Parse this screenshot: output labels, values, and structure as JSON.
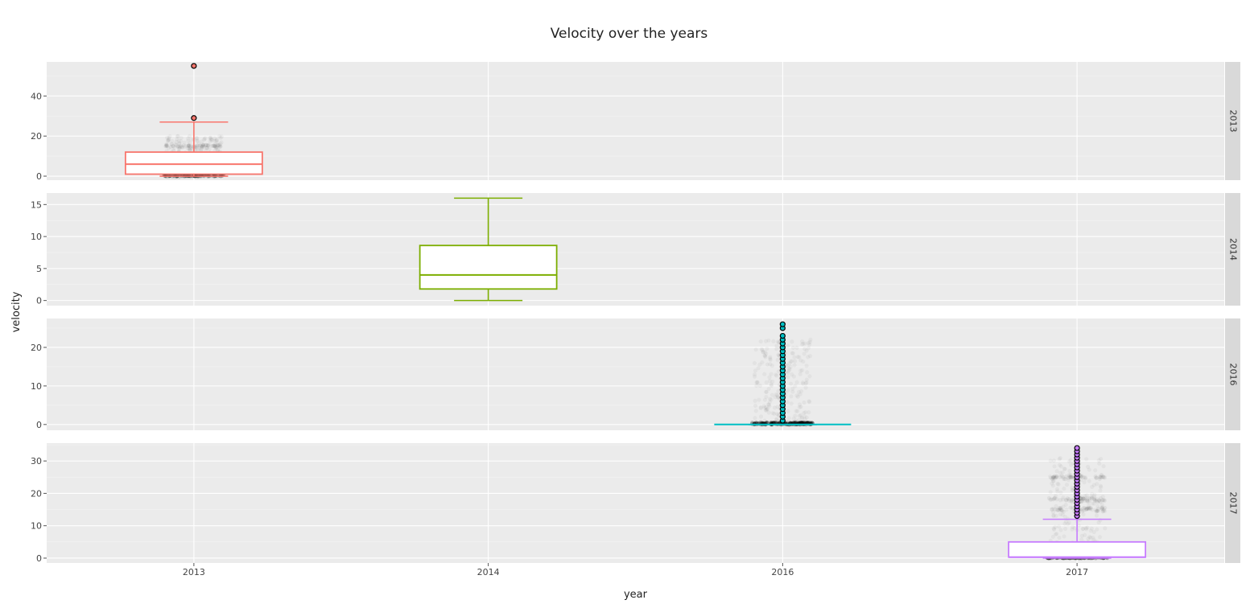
{
  "chart_data": {
    "type": "box",
    "title": "Velocity over the years",
    "xlabel": "year",
    "ylabel": "velocity",
    "categories": [
      "2013",
      "2014",
      "2016",
      "2017"
    ],
    "grid": true,
    "legend": "none",
    "facets": [
      {
        "label": "2013",
        "category": "2013",
        "color": "#F8766D",
        "ylim": [
          -2,
          57
        ],
        "yticks": [
          0,
          20,
          40
        ],
        "box": {
          "q1": 1,
          "median": 6,
          "q3": 12,
          "whisker_low": 0,
          "whisker_high": 27
        },
        "outliers": [
          29,
          55
        ],
        "jitter": {
          "max": 20,
          "dense_low": 2,
          "bands": [
            0,
            5,
            10,
            15
          ]
        }
      },
      {
        "label": "2014",
        "category": "2014",
        "color": "#7CAE00",
        "ylim": [
          -0.8,
          16.8
        ],
        "yticks": [
          0,
          5,
          10,
          15
        ],
        "box": {
          "q1": 1.8,
          "median": 4,
          "q3": 8.6,
          "whisker_low": 0,
          "whisker_high": 16
        },
        "outliers": [],
        "jitter": {
          "max": 0,
          "dense_low": 0,
          "bands": []
        }
      },
      {
        "label": "2016",
        "category": "2016",
        "color": "#00BFC4",
        "ylim": [
          -1.5,
          27.5
        ],
        "yticks": [
          0,
          10,
          20
        ],
        "box": {
          "q1": 0,
          "median": 0,
          "q3": 0,
          "whisker_low": 0,
          "whisker_high": 0
        },
        "outliers": [
          1,
          2,
          3,
          4,
          5,
          6,
          7,
          8,
          9,
          10,
          11,
          12,
          13,
          14,
          15,
          16,
          17,
          18,
          19,
          20,
          21,
          22,
          23,
          25,
          26
        ],
        "jitter": {
          "max": 22,
          "dense_low": 0.5,
          "bands": []
        }
      },
      {
        "label": "2017",
        "category": "2017",
        "color": "#C77CFF",
        "ylim": [
          -1.5,
          35.5
        ],
        "yticks": [
          0,
          10,
          20,
          30
        ],
        "box": {
          "q1": 0.3,
          "median": 0.3,
          "q3": 5,
          "whisker_low": 0,
          "whisker_high": 12
        },
        "outliers": [
          13,
          14,
          15,
          16,
          17,
          18,
          19,
          20,
          21,
          22,
          23,
          24,
          25,
          26,
          27,
          28,
          29,
          30,
          31,
          32,
          33,
          34
        ],
        "jitter": {
          "max": 31,
          "dense_low": 0.5,
          "bands": [
            15,
            18,
            25
          ]
        }
      }
    ]
  }
}
